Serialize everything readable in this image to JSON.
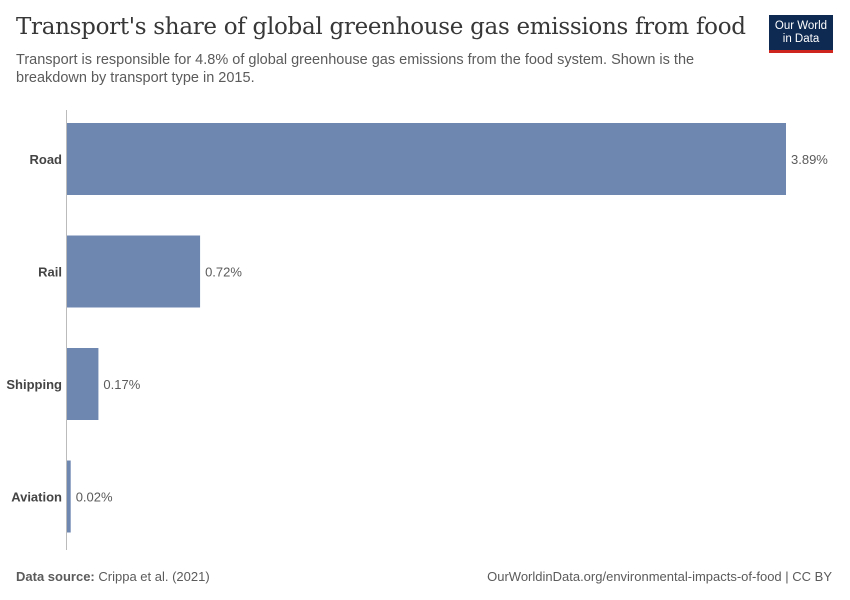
{
  "header": {
    "title": "Transport's share of global greenhouse gas emissions from food",
    "subtitle": "Transport is responsible for 4.8% of global greenhouse gas emissions from the food system. Shown is the breakdown by transport type in 2015.",
    "logo_text": "Our World in Data",
    "logo_colors": {
      "background": "#0f2a52",
      "accent": "#ce261e"
    }
  },
  "chart_data": {
    "type": "bar",
    "orientation": "horizontal",
    "categories": [
      "Road",
      "Rail",
      "Shipping",
      "Aviation"
    ],
    "values": [
      3.89,
      0.72,
      0.17,
      0.02
    ],
    "value_labels": [
      "3.89%",
      "0.72%",
      "0.17%",
      "0.02%"
    ],
    "unit": "%",
    "bar_color": "#6d87b1",
    "grid": false
  },
  "footer": {
    "source_label": "Data source:",
    "source": "Crippa et al. (2021)",
    "url_license": "OurWorldinData.org/environmental-impacts-of-food | CC BY"
  }
}
